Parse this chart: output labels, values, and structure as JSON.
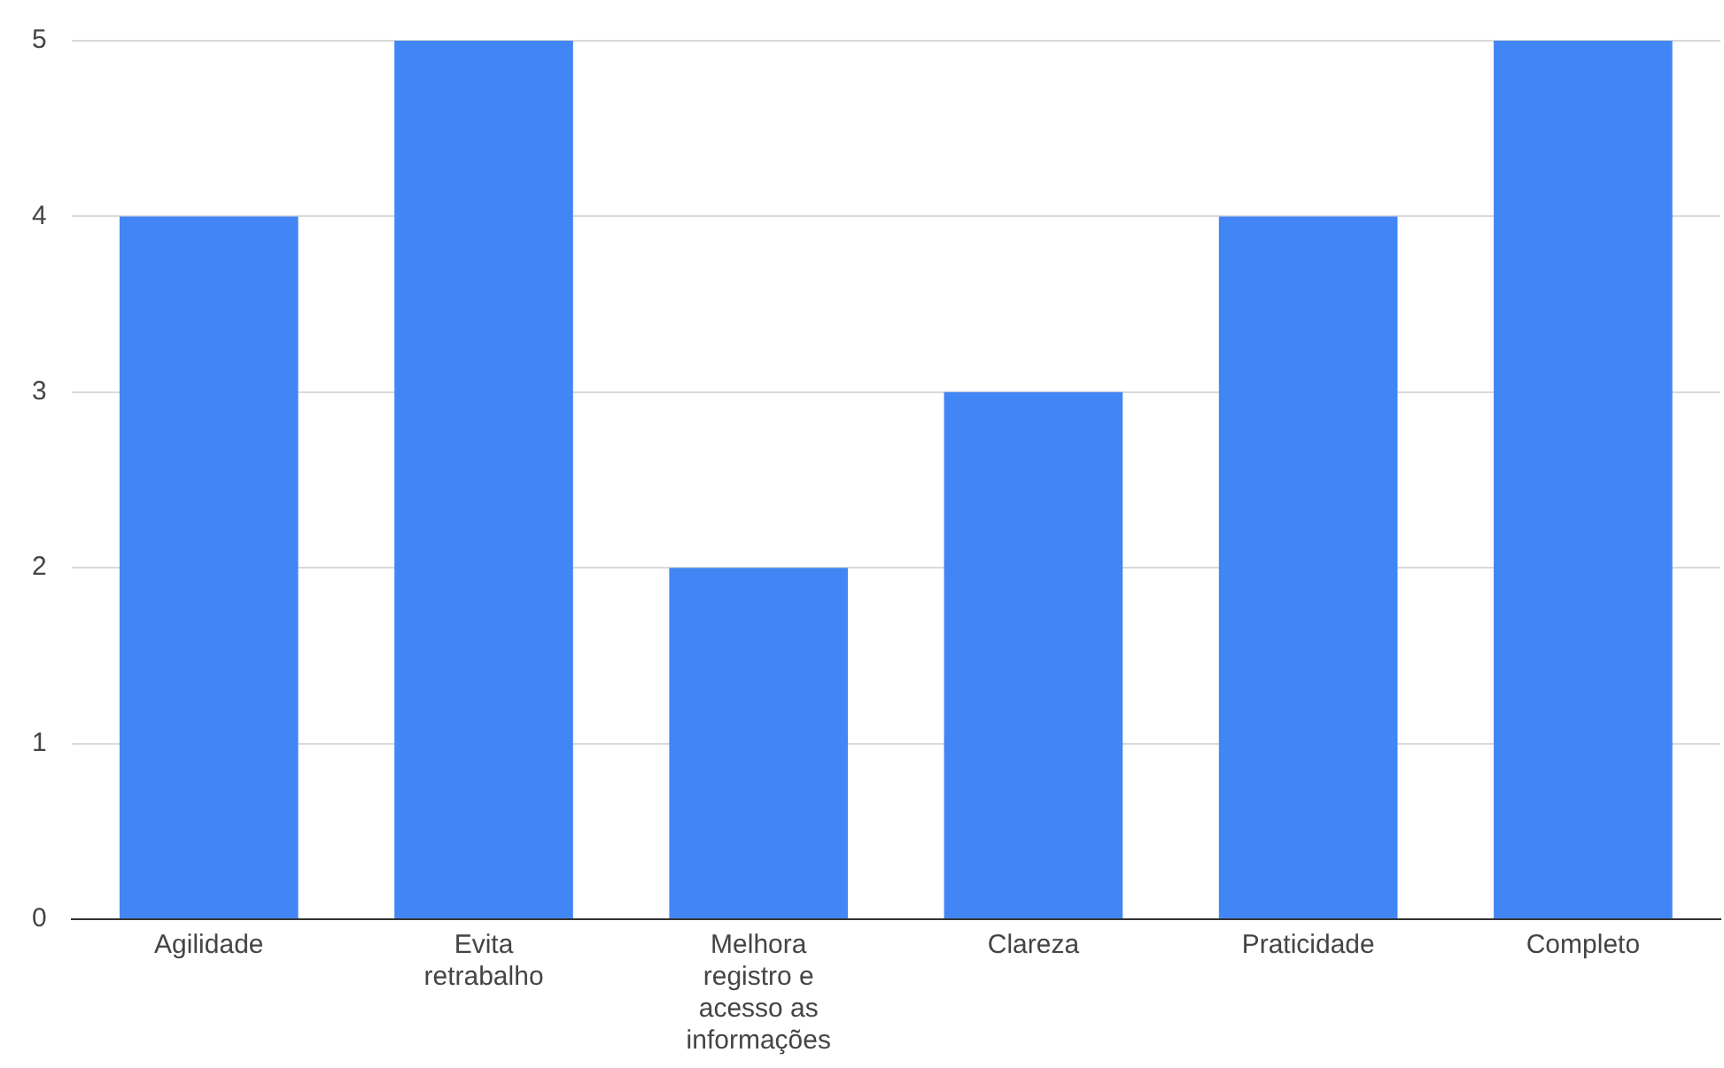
{
  "chart_data": {
    "type": "bar",
    "categories": [
      "Agilidade",
      "Evita retrabalho",
      "Melhora registro e acesso as informações",
      "Clareza",
      "Praticidade",
      "Completo"
    ],
    "values": [
      4,
      5,
      2,
      3,
      4,
      5
    ],
    "color": "#4285f4",
    "ylim": [
      0,
      5
    ],
    "yticks": [
      0,
      1,
      2,
      3,
      4,
      5
    ],
    "grid": "y",
    "legend": false
  }
}
